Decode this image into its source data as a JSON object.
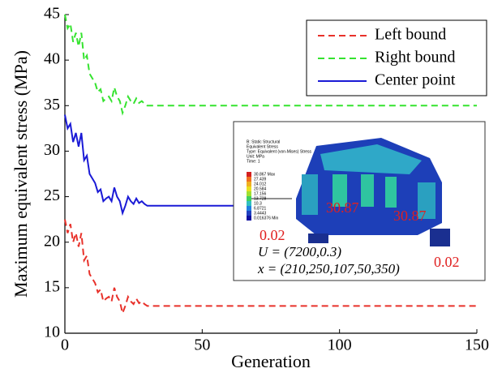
{
  "chart_data": {
    "type": "line",
    "xlabel": "Generation",
    "ylabel": "Maximum equivalent stress (MPa)",
    "x": [
      0,
      1,
      2,
      3,
      4,
      5,
      6,
      7,
      8,
      9,
      10,
      11,
      12,
      13,
      14,
      15,
      16,
      17,
      18,
      19,
      20,
      21,
      22,
      23,
      24,
      25,
      26,
      27,
      28,
      29,
      30,
      150
    ],
    "series": [
      {
        "name": "Left bound",
        "color": "#e8312a",
        "linestyle": "dashed",
        "values": [
          22.5,
          21,
          22,
          20,
          21,
          19.5,
          21,
          18,
          18.5,
          16.5,
          16,
          15.5,
          14.5,
          14.8,
          13.5,
          13.8,
          14,
          13.5,
          15,
          14,
          13.5,
          12.2,
          13,
          14,
          13.5,
          13.2,
          13.8,
          13.3,
          13.5,
          13.2,
          13,
          13
        ]
      },
      {
        "name": "Right bound",
        "color": "#35e32f",
        "linestyle": "dashed",
        "values": [
          45,
          43.5,
          44,
          42,
          43,
          41.5,
          43,
          40,
          40.5,
          38.5,
          38,
          37.5,
          36.5,
          36.8,
          35.5,
          35.8,
          36,
          35.5,
          37,
          36,
          35.5,
          34.2,
          35,
          36,
          35.5,
          35.2,
          35.8,
          35.3,
          35.5,
          35.2,
          35,
          35
        ]
      },
      {
        "name": "Center point",
        "color": "#1a1ad6",
        "linestyle": "solid",
        "values": [
          34,
          32.5,
          33,
          31,
          32,
          30.5,
          32,
          29,
          29.5,
          27.5,
          27,
          26.5,
          25.5,
          25.8,
          24.5,
          24.8,
          25,
          24.5,
          26,
          25,
          24.5,
          23.2,
          24,
          25,
          24.5,
          24.2,
          24.8,
          24.3,
          24.5,
          24.2,
          24,
          24
        ]
      }
    ],
    "xlim": [
      0,
      150
    ],
    "xticks": [
      0,
      50,
      100,
      150
    ],
    "ylim": [
      10,
      45
    ],
    "yticks": [
      10,
      15,
      20,
      25,
      30,
      35,
      40,
      45
    ],
    "legend": "upper right",
    "inset": {
      "header": [
        "B: Static Structural",
        "Equivalent Stress",
        "Type: Equivalent (von-Mises) Stress",
        "Unit: MPa",
        "Time: 1"
      ],
      "scale": [
        "30.867 Max",
        "27.439",
        "24.012",
        "20.584",
        "17.156",
        "13.728",
        "10.3",
        "6.8721",
        "3.4443",
        "0.016376 Min"
      ],
      "annotations": [
        "0.02",
        "30.87",
        "30.87",
        "0.02"
      ],
      "load": "U = (7200,0.3)",
      "params": "x = (210,250,107,50,350)"
    }
  }
}
